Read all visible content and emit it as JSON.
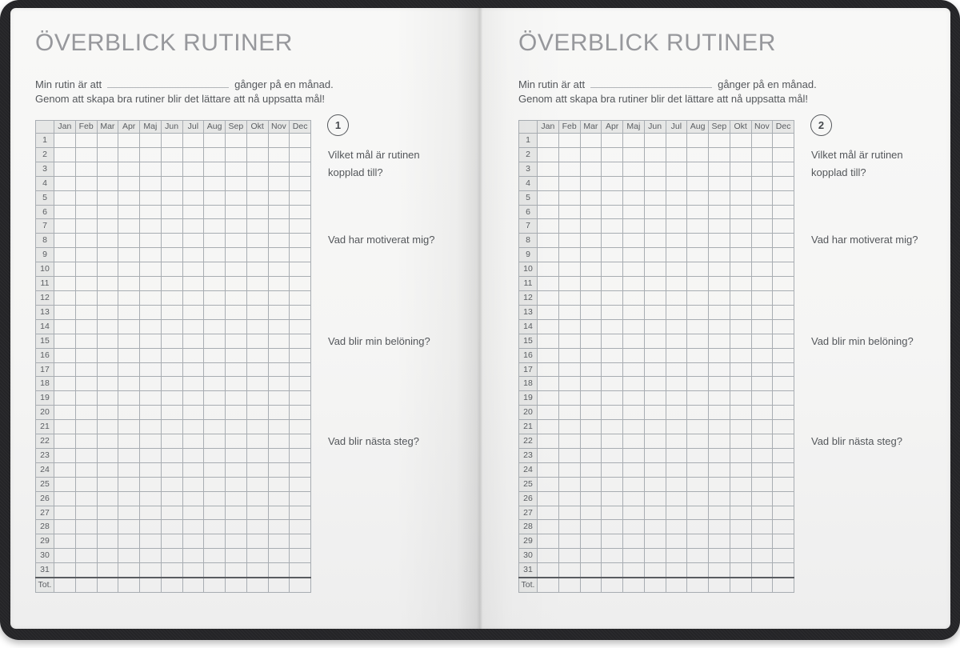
{
  "colors": {
    "cover": "#242427",
    "page": "#f5f5f4",
    "title_text": "#97989c",
    "body_text": "#54575b",
    "table_border": "#a8adb2",
    "table_header_bg": "#e6e7e6",
    "total_divider": "#595c60"
  },
  "pages": [
    {
      "number": "1",
      "title": "ÖVERBLICK RUTINER",
      "intro_prefix": "Min rutin är att",
      "intro_suffix": "gånger på en månad.",
      "intro_line2": "Genom att skapa bra rutiner blir det lättare att nå uppsatta mål!",
      "questions": [
        "Vilket mål är rutinen kopplad till?",
        "Vad har motiverat mig?",
        "Vad blir min belöning?",
        "Vad blir nästa steg?"
      ]
    },
    {
      "number": "2",
      "title": "ÖVERBLICK RUTINER",
      "intro_prefix": "Min rutin är att",
      "intro_suffix": "gånger på en månad.",
      "intro_line2": "Genom att skapa bra rutiner blir det lättare att nå uppsatta mål!",
      "questions": [
        "Vilket mål är rutinen kopplad till?",
        "Vad har motiverat mig?",
        "Vad blir min belöning?",
        "Vad blir nästa steg?"
      ]
    }
  ],
  "table": {
    "months": [
      "Jan",
      "Feb",
      "Mar",
      "Apr",
      "Maj",
      "Jun",
      "Jul",
      "Aug",
      "Sep",
      "Okt",
      "Nov",
      "Dec"
    ],
    "days": [
      "1",
      "2",
      "3",
      "4",
      "5",
      "6",
      "7",
      "8",
      "9",
      "10",
      "11",
      "12",
      "13",
      "14",
      "15",
      "16",
      "17",
      "18",
      "19",
      "20",
      "21",
      "22",
      "23",
      "24",
      "25",
      "26",
      "27",
      "28",
      "29",
      "30",
      "31"
    ],
    "total_label": "Tot."
  }
}
